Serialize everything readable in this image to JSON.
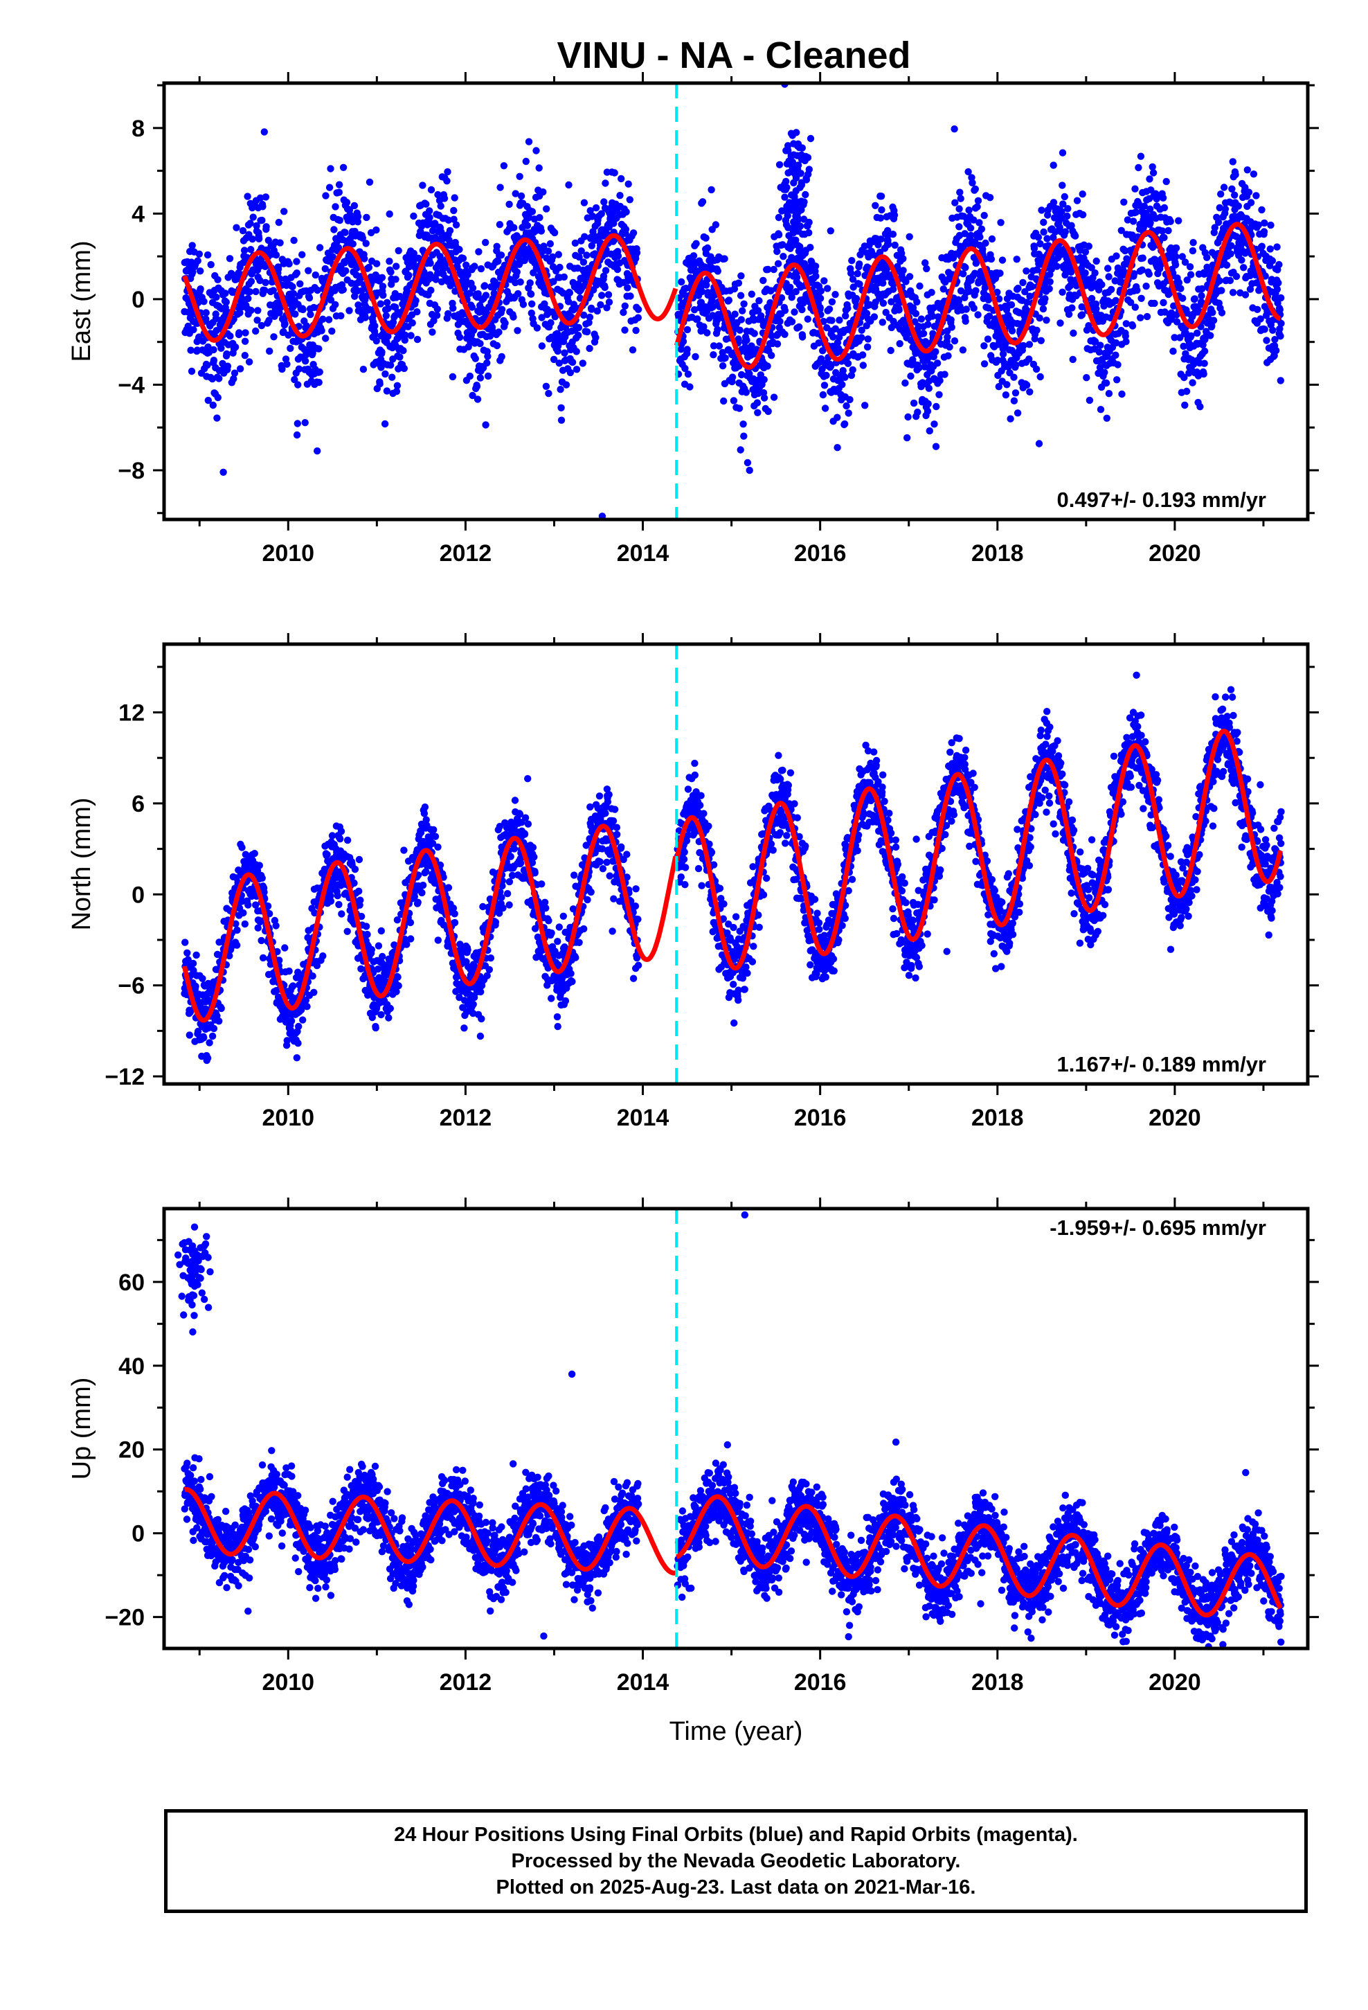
{
  "title": "VINU  - NA - Cleaned",
  "x_axis_label": "Time (year)",
  "footer": {
    "line1": "24 Hour Positions Using Final Orbits (blue) and Rapid Orbits (magenta).",
    "line2": "Processed by the Nevada Geodetic Laboratory.",
    "line3": "Plotted on 2025-Aug-23. Last data on 2021-Mar-16."
  },
  "colors": {
    "points": "#0000ff",
    "model": "#ff0000",
    "offset_line": "#00e5ee"
  },
  "chart_data": [
    {
      "type": "scatter",
      "id": "east",
      "ylabel": "East (mm)",
      "xlim": [
        2008.6,
        2021.5
      ],
      "ylim": [
        -10.3,
        10.1
      ],
      "xticks": [
        2010,
        2012,
        2014,
        2016,
        2018,
        2020
      ],
      "yticks": [
        -8,
        -4,
        0,
        4,
        8
      ],
      "ytick_labels": [
        "−8",
        "−4",
        "0",
        "4",
        "8"
      ],
      "rate_label": "0.497+/- 0.193 mm/yr",
      "rate_position": "bottom-right",
      "offset_epoch": 2014.38,
      "data_span": [
        2008.83,
        2021.2
      ],
      "model": {
        "pre": {
          "a0": 0.0,
          "b0": 0.2,
          "amp": 2.0,
          "phase": 2009.67
        },
        "post": {
          "a0": -1.2,
          "b0": 0.38,
          "amp": 2.3,
          "phase": 2015.7
        }
      },
      "scatter_sigma": 1.6,
      "annotations": [
        {
          "x": 2015.7,
          "y": 5.5,
          "count": 90,
          "spread": 1.5,
          "note": "2015 excursion"
        }
      ]
    },
    {
      "type": "scatter",
      "id": "north",
      "ylabel": "North (mm)",
      "xlim": [
        2008.6,
        2021.5
      ],
      "ylim": [
        -12.5,
        16.5
      ],
      "xticks": [
        2010,
        2012,
        2014,
        2016,
        2018,
        2020
      ],
      "yticks": [
        -12,
        -6,
        0,
        6,
        12
      ],
      "ytick_labels": [
        "−12",
        "−6",
        "0",
        "6",
        "12"
      ],
      "rate_label": "1.167+/- 0.189 mm/yr",
      "rate_position": "bottom-right",
      "offset_epoch": 2014.38,
      "data_span": [
        2008.83,
        2021.2
      ],
      "model": {
        "pre": {
          "a0": -3.9,
          "b0": 0.8,
          "amp": 4.6,
          "phase": 2009.55
        },
        "post": {
          "a0": -0.3,
          "b0": 0.95,
          "amp": 5.2,
          "phase": 2014.55
        }
      },
      "scatter_sigma": 1.3,
      "annotations": []
    },
    {
      "type": "scatter",
      "id": "up",
      "ylabel": "Up (mm)",
      "xlim": [
        2008.6,
        2021.5
      ],
      "ylim": [
        -27.5,
        77.5
      ],
      "xticks": [
        2010,
        2012,
        2014,
        2016,
        2018,
        2020
      ],
      "yticks": [
        -20,
        0,
        20,
        40,
        60
      ],
      "ytick_labels": [
        "−20",
        "0",
        "20",
        "40",
        "60"
      ],
      "rate_label": "-1.959+/- 0.695 mm/yr",
      "rate_position": "top-right",
      "offset_epoch": 2014.38,
      "data_span": [
        2008.83,
        2021.2
      ],
      "model": {
        "pre": {
          "a0": 3.0,
          "b0": -0.9,
          "amp": 7.5,
          "phase": 2009.85
        },
        "post": {
          "a0": 2.0,
          "b0": -2.3,
          "amp": 7.8,
          "phase": 2014.85
        }
      },
      "scatter_sigma": 4.0,
      "annotations": [
        {
          "x": 2008.95,
          "y": 63,
          "count": 70,
          "spread": 4.5,
          "note": "early cluster"
        },
        {
          "x": 2013.2,
          "y": 38,
          "count": 1,
          "spread": 0
        },
        {
          "x": 2015.15,
          "y": 76,
          "count": 1,
          "spread": 0
        }
      ]
    }
  ]
}
